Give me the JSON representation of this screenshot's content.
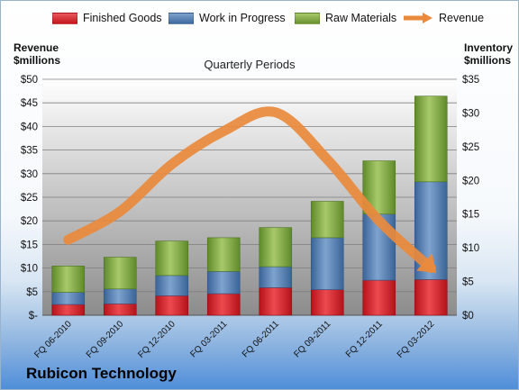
{
  "legend": {
    "finished_goods": "Finished Goods",
    "work_in_progress": "Work in Progress",
    "raw_materials": "Raw Materials",
    "revenue": "Revenue"
  },
  "axes": {
    "left_title_1": "Revenue",
    "left_title_2": "$millions",
    "right_title_1": "Inventory",
    "right_title_2": "$millions",
    "plot_title": "Quarterly Periods"
  },
  "brand": "Rubicon Technology",
  "colors": {
    "finished_goods": "#d9242b",
    "work_in_progress": "#4d79ad",
    "raw_materials": "#7ea43c",
    "revenue": "#e98a3c"
  },
  "chart_data": {
    "type": "bar",
    "stacked": true,
    "categories": [
      "FQ 06-2010",
      "FQ 09-2010",
      "FQ 12-2010",
      "FQ 03-2011",
      "FQ 06-2011",
      "FQ 09-2011",
      "FQ 12-2011",
      "FQ 03-2012"
    ],
    "series": [
      {
        "name": "Finished Goods",
        "axis": "right",
        "values": [
          1.6,
          1.7,
          2.9,
          3.2,
          4.1,
          3.8,
          5.2,
          5.3
        ]
      },
      {
        "name": "Work in Progress",
        "axis": "right",
        "values": [
          1.8,
          2.2,
          3.0,
          3.3,
          3.1,
          7.7,
          9.8,
          14.5
        ]
      },
      {
        "name": "Raw Materials",
        "axis": "right",
        "values": [
          3.9,
          4.7,
          5.1,
          5.0,
          5.8,
          5.4,
          7.9,
          12.7
        ]
      },
      {
        "name": "Revenue",
        "type": "line",
        "axis": "left",
        "values": [
          16,
          22,
          32,
          39,
          43,
          33,
          20,
          10
        ]
      }
    ],
    "y_left": {
      "ylim": [
        0,
        50
      ],
      "ticks": [
        "$-",
        "$5",
        "$10",
        "$15",
        "$20",
        "$25",
        "$30",
        "$35",
        "$40",
        "$45",
        "$50"
      ]
    },
    "y_right": {
      "ylim": [
        0,
        35
      ],
      "ticks": [
        "$0",
        "$5",
        "$10",
        "$15",
        "$20",
        "$25",
        "$30",
        "$35"
      ]
    },
    "grid": true,
    "legend_position": "top"
  }
}
